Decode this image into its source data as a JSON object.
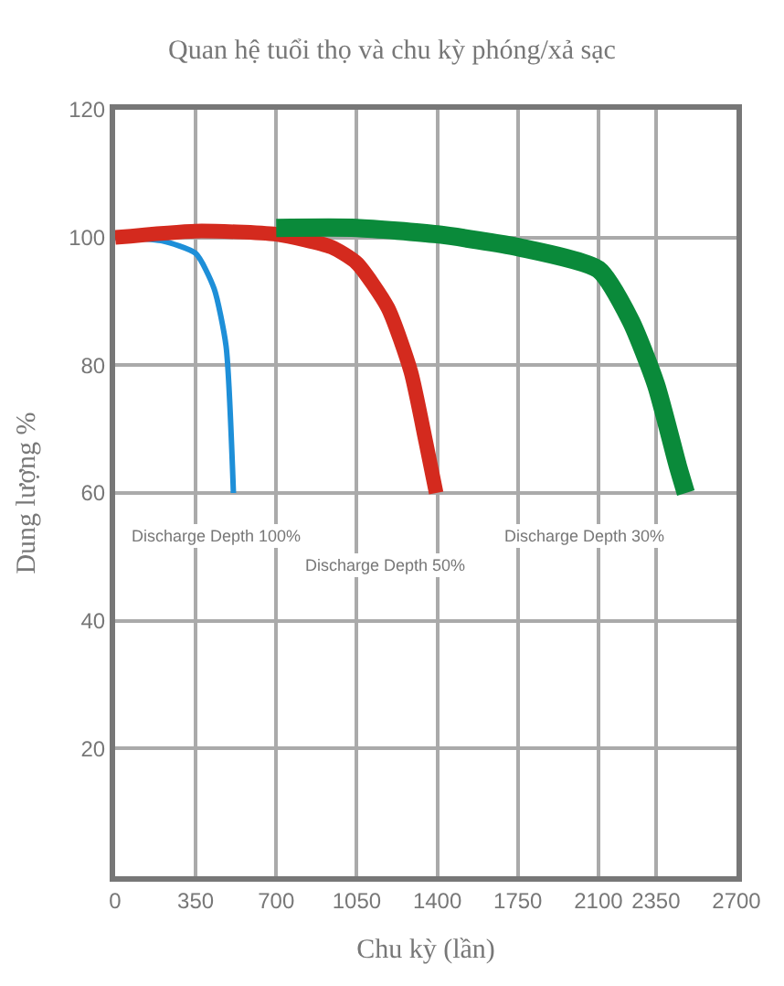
{
  "chart_data": {
    "type": "line",
    "title": "Quan hệ tuổi thọ và chu kỳ phóng/xả sạc",
    "xlabel": "Chu kỳ (lần)",
    "ylabel": "Dung lượng %",
    "xlim": [
      0,
      2700
    ],
    "xticks": [
      0,
      350,
      700,
      1050,
      1400,
      1750,
      2100,
      2350,
      2700
    ],
    "ylim": [
      0,
      120
    ],
    "yticks": [
      20,
      40,
      60,
      80,
      100,
      120
    ],
    "grid": true,
    "series": [
      {
        "color": "#1e8fd8",
        "x": [
          0,
          200,
          350,
          430,
          482,
          514
        ],
        "values": [
          100,
          99.5,
          97.5,
          92,
          83,
          60
        ]
      },
      {
        "color": "#d42a1e",
        "x": [
          0,
          350,
          700,
          940,
          1050,
          1185,
          1285,
          1350,
          1395
        ],
        "values": [
          100,
          101,
          100.5,
          98.5,
          96,
          89,
          79,
          68,
          60
        ]
      },
      {
        "color": "#0a8a3a",
        "x": [
          700,
          1050,
          1400,
          1750,
          2100,
          2240,
          2350,
          2447,
          2480
        ],
        "values": [
          101.5,
          101.5,
          100.5,
          98.5,
          95,
          87,
          77,
          64,
          60
        ]
      }
    ],
    "annotations": [
      "Discharge Depth 100%",
      "Discharge Depth 50%",
      "Discharge Depth 30%"
    ]
  }
}
